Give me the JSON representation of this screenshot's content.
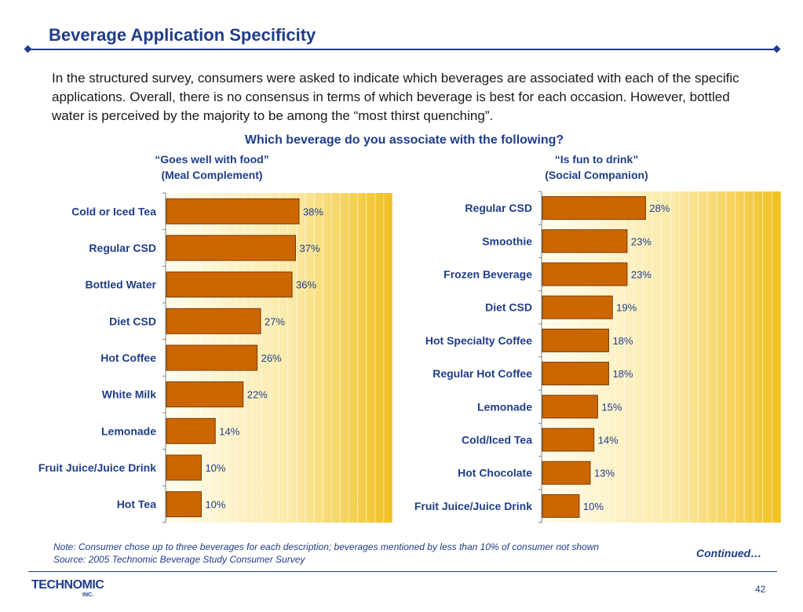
{
  "slide": {
    "title": "Beverage Application Specificity",
    "intro": "In the structured survey, consumers were asked to indicate which beverages are associated with each of the specific applications. Overall, there is no consensus in terms of which beverage is best for each occasion. However, bottled water is perceived by the majority to be among the “most thirst quenching”.",
    "question": "Which beverage do you associate with the following?",
    "note": "Note: Consumer chose up to three beverages for each description; beverages mentioned by less than 10% of consumer not shown",
    "source": "Source: 2005 Technomic Beverage Study Consumer Survey",
    "continued": "Continued…",
    "logo_text": "TECHNOMIC",
    "logo_inc": "INC.",
    "page_number": "42"
  },
  "colors": {
    "accent": "#1f3d8a",
    "bar": "#cc6600",
    "bar_border": "#7a3a00",
    "gradient_start": "#fffcee",
    "gradient_end": "#f0c020"
  },
  "chart_data": [
    {
      "type": "bar",
      "orientation": "horizontal",
      "title_line1": "“Goes well with food”",
      "title_line2": "(Meal Complement)",
      "categories": [
        "Cold or Iced Tea",
        "Regular CSD",
        "Bottled Water",
        "Diet CSD",
        "Hot Coffee",
        "White Milk",
        "Lemonade",
        "Fruit Juice/Juice Drink",
        "Hot Tea"
      ],
      "values": [
        38,
        37,
        36,
        27,
        26,
        22,
        14,
        10,
        10
      ],
      "value_labels": [
        "38%",
        "37%",
        "36%",
        "27%",
        "26%",
        "22%",
        "14%",
        "10%",
        "10%"
      ],
      "xlim": [
        0,
        65
      ],
      "unit": "%"
    },
    {
      "type": "bar",
      "orientation": "horizontal",
      "title_line1": "“Is fun to drink”",
      "title_line2": "(Social Companion)",
      "categories": [
        "Regular CSD",
        "Smoothie",
        "Frozen Beverage",
        "Diet CSD",
        "Hot Specialty Coffee",
        "Regular Hot Coffee",
        "Lemonade",
        "Cold/Iced Tea",
        "Hot Chocolate",
        "Fruit Juice/Juice Drink"
      ],
      "values": [
        28,
        23,
        23,
        19,
        18,
        18,
        15,
        14,
        13,
        10
      ],
      "value_labels": [
        "28%",
        "23%",
        "23%",
        "19%",
        "18%",
        "18%",
        "15%",
        "14%",
        "13%",
        "10%"
      ],
      "xlim": [
        0,
        65
      ],
      "unit": "%"
    }
  ]
}
